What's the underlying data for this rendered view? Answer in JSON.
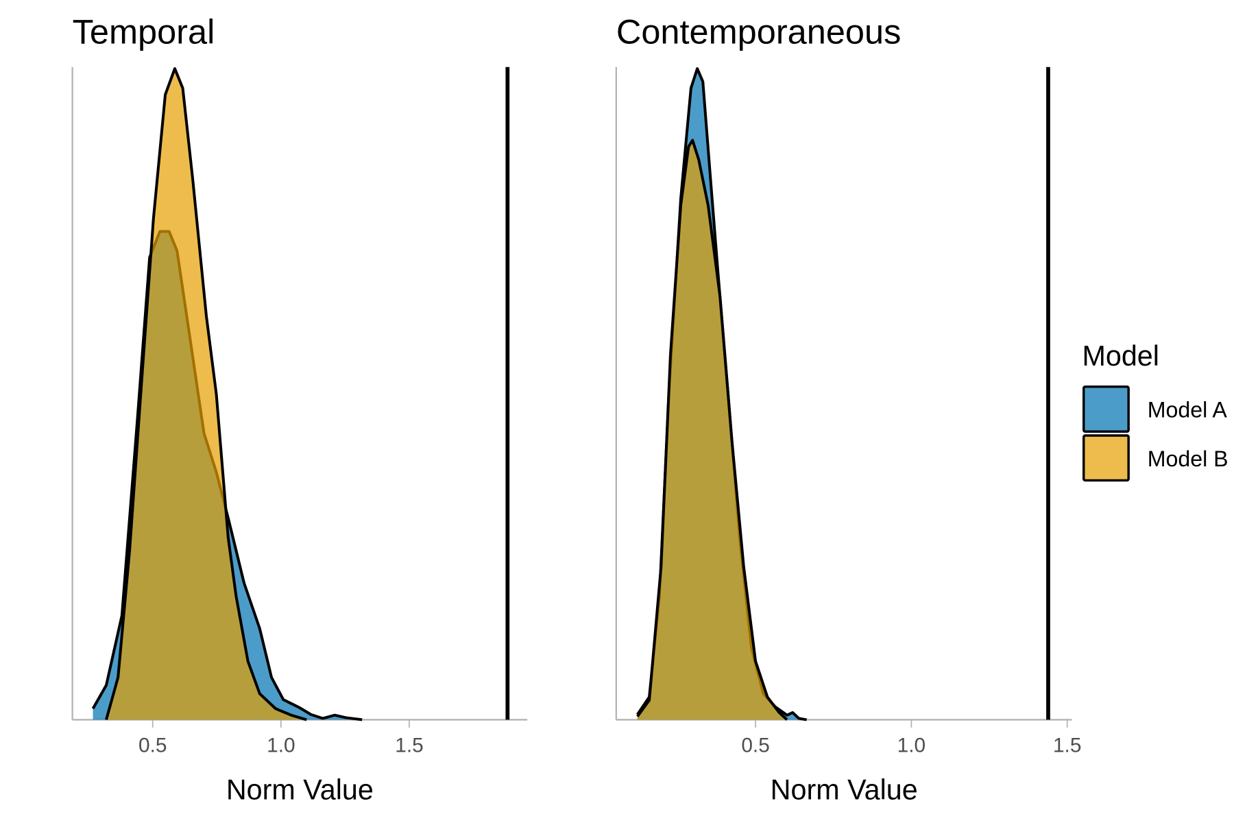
{
  "chart_data": [
    {
      "type": "area",
      "title": "Temporal",
      "xlabel": "Norm Value",
      "ylabel": "",
      "xlim": [
        0.187,
        1.96
      ],
      "xticks": [
        0.5,
        1.0,
        1.5
      ],
      "xtick_labels": [
        "0.5",
        "1.0",
        "1.5"
      ],
      "yticks": [],
      "vline": 1.883,
      "grid": false,
      "series": [
        {
          "name": "Model A",
          "x": [
            0.267,
            0.319,
            0.38,
            0.44,
            0.488,
            0.528,
            0.564,
            0.595,
            0.64,
            0.7,
            0.748,
            0.794,
            0.856,
            0.917,
            0.963,
            1.009,
            1.07,
            1.117,
            1.163,
            1.209,
            1.255,
            1.316
          ],
          "y": [
            0.017,
            0.053,
            0.16,
            0.46,
            0.71,
            0.75,
            0.75,
            0.72,
            0.6,
            0.44,
            0.38,
            0.31,
            0.21,
            0.14,
            0.065,
            0.031,
            0.019,
            0.008,
            0.002,
            0.007,
            0.003,
            0
          ]
        },
        {
          "name": "Model B",
          "x": [
            0.319,
            0.365,
            0.41,
            0.457,
            0.503,
            0.549,
            0.586,
            0.617,
            0.656,
            0.709,
            0.748,
            0.794,
            0.825,
            0.871,
            0.917,
            0.979,
            1.04,
            1.1
          ],
          "y": [
            0,
            0.065,
            0.26,
            0.52,
            0.77,
            0.96,
            1.0,
            0.97,
            0.83,
            0.62,
            0.5,
            0.28,
            0.19,
            0.09,
            0.04,
            0.017,
            0.007,
            0
          ]
        }
      ]
    },
    {
      "type": "area",
      "title": "Contemporaneous",
      "xlabel": "Norm Value",
      "ylabel": "",
      "xlim": [
        0.053,
        1.515
      ],
      "xticks": [
        0.5,
        1.0,
        1.5
      ],
      "xtick_labels": [
        "0.5",
        "1.0",
        "1.5"
      ],
      "yticks": [],
      "vline": 1.439,
      "grid": false,
      "series": [
        {
          "name": "Model A",
          "x": [
            0.121,
            0.159,
            0.192,
            0.222,
            0.26,
            0.293,
            0.313,
            0.331,
            0.354,
            0.379,
            0.412,
            0.449,
            0.487,
            0.525,
            0.563,
            0.601,
            0.619,
            0.639,
            0.664
          ],
          "y": [
            0.008,
            0.035,
            0.19,
            0.5,
            0.8,
            0.97,
            1.0,
            0.98,
            0.84,
            0.69,
            0.5,
            0.28,
            0.11,
            0.04,
            0.02,
            0.007,
            0.011,
            0.002,
            0
          ]
        },
        {
          "name": "Model B",
          "x": [
            0.121,
            0.159,
            0.197,
            0.227,
            0.26,
            0.285,
            0.298,
            0.318,
            0.348,
            0.386,
            0.424,
            0.462,
            0.5,
            0.538,
            0.576,
            0.601
          ],
          "y": [
            0.005,
            0.03,
            0.235,
            0.56,
            0.79,
            0.88,
            0.89,
            0.86,
            0.79,
            0.65,
            0.43,
            0.235,
            0.09,
            0.035,
            0.011,
            0
          ]
        }
      ]
    }
  ],
  "legend": {
    "title": "Model",
    "placement": "right",
    "items": [
      {
        "label": "Model A",
        "color": "#0072B2"
      },
      {
        "label": "Model B",
        "color": "#E69F00"
      }
    ]
  },
  "fill_alpha": 0.7
}
